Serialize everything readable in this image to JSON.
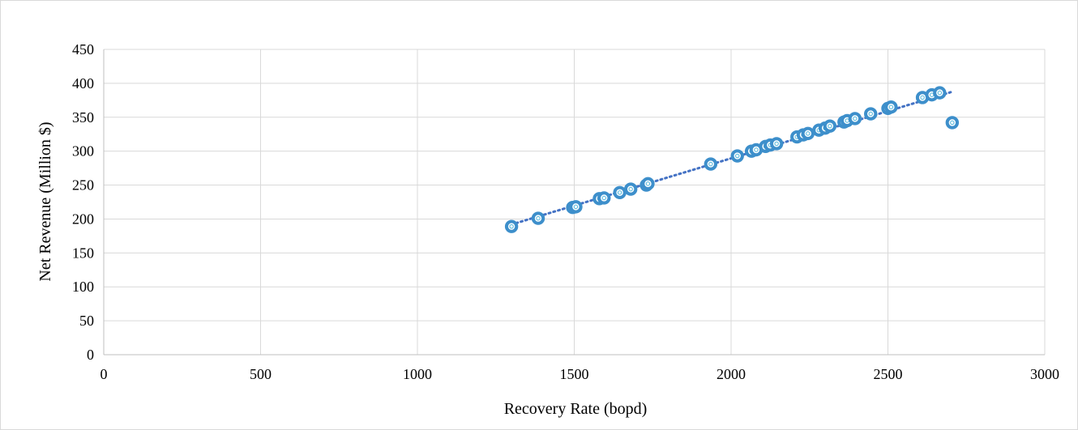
{
  "chart_data": {
    "type": "scatter",
    "title": "",
    "xlabel": "Recovery Rate (bopd)",
    "ylabel": "Net Revenue (Million $)",
    "xlim": [
      0,
      3000
    ],
    "ylim": [
      0,
      450
    ],
    "xticks": [
      0,
      500,
      1000,
      1500,
      2000,
      2500,
      3000
    ],
    "yticks": [
      0,
      50,
      100,
      150,
      200,
      250,
      300,
      350,
      400,
      450
    ],
    "grid": true,
    "legend": "none",
    "marker_color": "#3d8fcb",
    "marker_inner_color": "#4db3d9",
    "trendline": {
      "type": "linear",
      "style": "dotted",
      "color": "#4472c4",
      "x": [
        1300,
        2700
      ]
    },
    "series": [
      {
        "x": [
          1300,
          1385,
          1495,
          1505,
          1580,
          1595,
          1645,
          1680,
          1730,
          1735,
          1935,
          2020,
          2065,
          2080,
          2110,
          2125,
          2145,
          2210,
          2230,
          2245,
          2280,
          2300,
          2315,
          2360,
          2370,
          2395,
          2445,
          2500,
          2510,
          2610,
          2640,
          2665,
          2705
        ],
        "y": [
          189,
          201,
          217,
          218,
          230,
          231,
          239,
          244,
          250,
          252,
          281,
          293,
          300,
          302,
          307,
          309,
          311,
          321,
          324,
          326,
          331,
          334,
          337,
          343,
          345,
          348,
          355,
          363,
          365,
          379,
          383,
          386,
          342
        ]
      }
    ]
  }
}
